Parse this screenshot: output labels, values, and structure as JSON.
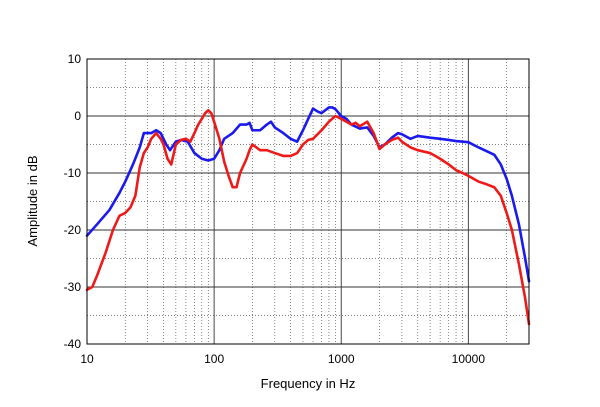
{
  "chart_data": {
    "type": "line",
    "xlabel": "Frequency in Hz",
    "ylabel": "Amplitude in dB",
    "xscale": "log",
    "xlim": [
      10,
      30000
    ],
    "ylim": [
      -40,
      10
    ],
    "x_ticks": [
      10,
      100,
      1000,
      10000
    ],
    "x_tick_labels": [
      "10",
      "100",
      "1000",
      "10000"
    ],
    "y_ticks": [
      10,
      0,
      -10,
      -20,
      -30,
      -40
    ],
    "y_tick_labels": [
      "10",
      "0",
      "-10",
      "-20",
      "-30",
      "-40"
    ],
    "grid": true,
    "grid_style": "dotted",
    "series": [
      {
        "color": "#1a1aee",
        "points": [
          [
            10,
            -21
          ],
          [
            12,
            -19
          ],
          [
            15,
            -16.5
          ],
          [
            18,
            -13.5
          ],
          [
            20,
            -11.5
          ],
          [
            23,
            -8.5
          ],
          [
            26,
            -5.5
          ],
          [
            28,
            -3
          ],
          [
            32,
            -3
          ],
          [
            35,
            -2.5
          ],
          [
            38,
            -3
          ],
          [
            42,
            -5
          ],
          [
            45,
            -6
          ],
          [
            50,
            -4.5
          ],
          [
            55,
            -4.2
          ],
          [
            62,
            -4.5
          ],
          [
            70,
            -6.5
          ],
          [
            80,
            -7.5
          ],
          [
            90,
            -7.8
          ],
          [
            100,
            -7.5
          ],
          [
            110,
            -6
          ],
          [
            120,
            -4
          ],
          [
            140,
            -3
          ],
          [
            160,
            -1.5
          ],
          [
            180,
            -1.5
          ],
          [
            190,
            -1.2
          ],
          [
            200,
            -2.5
          ],
          [
            230,
            -2.5
          ],
          [
            260,
            -1.5
          ],
          [
            280,
            -1
          ],
          [
            300,
            -2
          ],
          [
            350,
            -3
          ],
          [
            400,
            -4
          ],
          [
            450,
            -4.5
          ],
          [
            500,
            -2.5
          ],
          [
            550,
            -0.5
          ],
          [
            600,
            1.3
          ],
          [
            650,
            0.8
          ],
          [
            700,
            0.5
          ],
          [
            800,
            1.5
          ],
          [
            850,
            1.5
          ],
          [
            900,
            1.2
          ],
          [
            1000,
            0
          ],
          [
            1100,
            -0.5
          ],
          [
            1200,
            -1.5
          ],
          [
            1400,
            -2.2
          ],
          [
            1600,
            -2
          ],
          [
            1800,
            -3.5
          ],
          [
            2000,
            -5.5
          ],
          [
            2200,
            -5
          ],
          [
            2500,
            -3.8
          ],
          [
            2800,
            -3
          ],
          [
            3000,
            -3.2
          ],
          [
            3500,
            -4
          ],
          [
            4000,
            -3.5
          ],
          [
            5000,
            -3.8
          ],
          [
            6000,
            -4
          ],
          [
            7000,
            -4.2
          ],
          [
            8000,
            -4.4
          ],
          [
            10000,
            -4.6
          ],
          [
            12000,
            -5.5
          ],
          [
            14000,
            -6.2
          ],
          [
            16000,
            -6.8
          ],
          [
            18000,
            -8.5
          ],
          [
            20000,
            -11
          ],
          [
            22000,
            -14
          ],
          [
            25000,
            -19
          ],
          [
            28000,
            -25
          ],
          [
            30000,
            -29
          ]
        ]
      },
      {
        "color": "#ee1a1a",
        "points": [
          [
            10,
            -30.5
          ],
          [
            11,
            -30
          ],
          [
            12,
            -28
          ],
          [
            14,
            -24
          ],
          [
            16,
            -20
          ],
          [
            18,
            -17.5
          ],
          [
            20,
            -17
          ],
          [
            22,
            -16
          ],
          [
            24,
            -14
          ],
          [
            26,
            -9
          ],
          [
            28,
            -6.5
          ],
          [
            30,
            -5.5
          ],
          [
            32,
            -4
          ],
          [
            35,
            -3
          ],
          [
            38,
            -4
          ],
          [
            40,
            -5
          ],
          [
            43,
            -7.5
          ],
          [
            46,
            -8.5
          ],
          [
            50,
            -5
          ],
          [
            55,
            -4.2
          ],
          [
            60,
            -4
          ],
          [
            65,
            -4.5
          ],
          [
            70,
            -3
          ],
          [
            75,
            -1.5
          ],
          [
            80,
            -0.5
          ],
          [
            85,
            0.5
          ],
          [
            90,
            1
          ],
          [
            95,
            0.5
          ],
          [
            100,
            -1
          ],
          [
            110,
            -4
          ],
          [
            120,
            -8
          ],
          [
            130,
            -10.5
          ],
          [
            140,
            -12.5
          ],
          [
            150,
            -12.5
          ],
          [
            160,
            -10
          ],
          [
            180,
            -7.5
          ],
          [
            190,
            -6
          ],
          [
            200,
            -5
          ],
          [
            230,
            -6
          ],
          [
            260,
            -6
          ],
          [
            300,
            -6.5
          ],
          [
            350,
            -7
          ],
          [
            400,
            -7
          ],
          [
            450,
            -6.5
          ],
          [
            500,
            -5
          ],
          [
            550,
            -4.2
          ],
          [
            600,
            -4
          ],
          [
            700,
            -2.5
          ],
          [
            800,
            -1
          ],
          [
            900,
            0
          ],
          [
            1000,
            -0.5
          ],
          [
            1100,
            -1
          ],
          [
            1200,
            -1.5
          ],
          [
            1300,
            -1.2
          ],
          [
            1400,
            -1.8
          ],
          [
            1600,
            -1
          ],
          [
            1800,
            -3
          ],
          [
            2000,
            -5.8
          ],
          [
            2200,
            -5
          ],
          [
            2500,
            -4.2
          ],
          [
            2800,
            -3.8
          ],
          [
            3000,
            -4.5
          ],
          [
            3500,
            -5.5
          ],
          [
            4000,
            -6
          ],
          [
            5000,
            -6.5
          ],
          [
            6000,
            -7.5
          ],
          [
            7000,
            -8.5
          ],
          [
            8000,
            -9.5
          ],
          [
            9000,
            -10
          ],
          [
            10000,
            -10.5
          ],
          [
            12000,
            -11.5
          ],
          [
            14000,
            -12
          ],
          [
            16000,
            -12.5
          ],
          [
            18000,
            -14
          ],
          [
            20000,
            -17
          ],
          [
            22000,
            -20
          ],
          [
            25000,
            -26
          ],
          [
            28000,
            -32
          ],
          [
            30000,
            -36.5
          ]
        ]
      }
    ]
  }
}
